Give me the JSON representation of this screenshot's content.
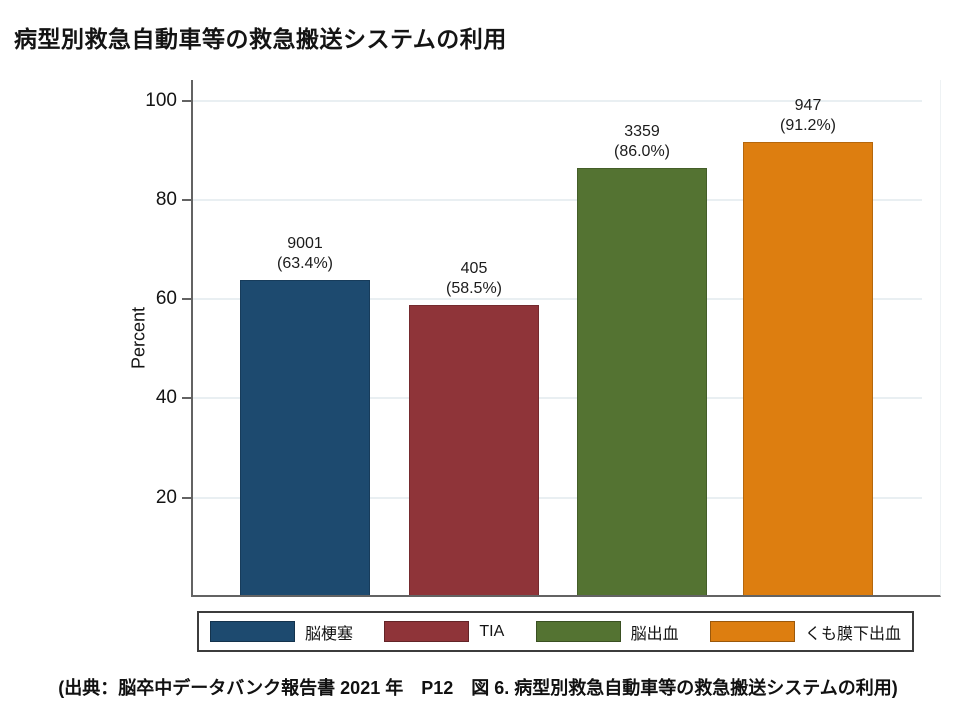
{
  "page": {
    "title": "病型別救急自動車等の救急搬送システムの利用",
    "source_caption": "(出典：脳卒中データバンク報告書 2021 年　P12　図 6. 病型別救急自動車等の救急搬送システムの利用)"
  },
  "chart_data": {
    "type": "bar",
    "title": "病型別救急自動車等の救急搬送システムの利用",
    "xlabel": "",
    "ylabel": "Percent",
    "ylim": [
      0,
      100
    ],
    "yticks": [
      20,
      40,
      60,
      80,
      100
    ],
    "grid": true,
    "legend_position": "bottom",
    "categories": [
      "脳梗塞",
      "TIA",
      "脳出血",
      "くも膜下出血"
    ],
    "values": [
      63.4,
      58.5,
      86.0,
      91.2
    ],
    "counts": [
      "9001",
      "405",
      "3359",
      "947"
    ],
    "pct_labels": [
      "(63.4%)",
      "(58.5%)",
      "(86.0%)",
      "(91.2%)"
    ],
    "colors": [
      "#1d4a6f",
      "#8f3439",
      "#547332",
      "#dd7e10"
    ]
  }
}
